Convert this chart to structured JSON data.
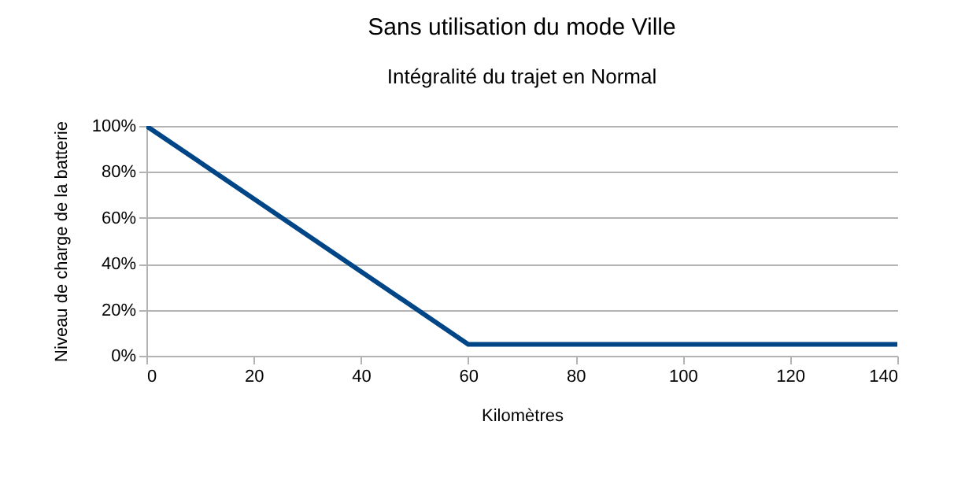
{
  "chart_data": {
    "type": "line",
    "title": "Sans utilisation du mode Ville",
    "subtitle": "Intégralité du trajet en Normal",
    "xlabel": "Kilomètres",
    "ylabel": "Niveau de charge de la batterie",
    "x": [
      0,
      60,
      140
    ],
    "series": [
      {
        "color": "#004586",
        "values": [
          100,
          5,
          5
        ]
      }
    ],
    "xlim": [
      0,
      140
    ],
    "xticks": [
      0,
      20,
      40,
      60,
      80,
      100,
      120,
      140
    ],
    "ylim": [
      0,
      100
    ],
    "yticks": [
      {
        "value": 0,
        "label": "0%"
      },
      {
        "value": 20,
        "label": "20%"
      },
      {
        "value": 40,
        "label": "40%"
      },
      {
        "value": 60,
        "label": "60%"
      },
      {
        "value": 80,
        "label": "80%"
      },
      {
        "value": 100,
        "label": "100%"
      }
    ],
    "grid": "y",
    "marker": "none",
    "line_style": "solid"
  }
}
